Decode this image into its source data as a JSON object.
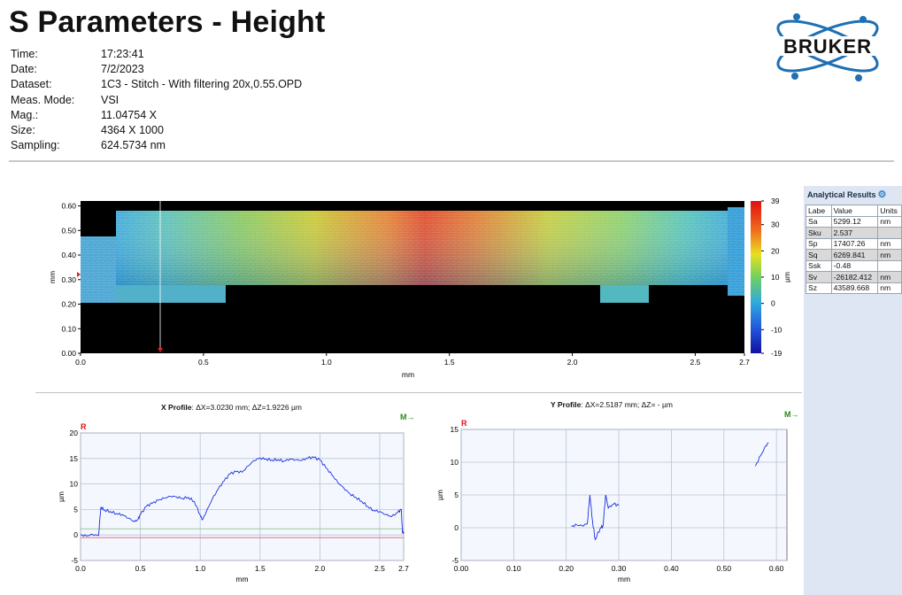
{
  "header": {
    "title": "S Parameters - Height",
    "meta": [
      {
        "key": "Time:",
        "value": "17:23:41"
      },
      {
        "key": "Date:",
        "value": "7/2/2023"
      },
      {
        "key": "Dataset:",
        "value": "1C3 - Stitch - With filtering 20x,0.55.OPD"
      },
      {
        "key": "Meas. Mode:",
        "value": "VSI"
      },
      {
        "key": "Mag.:",
        "value": "11.04754 X"
      },
      {
        "key": "Size:",
        "value": "4364 X 1000"
      },
      {
        "key": "Sampling:",
        "value": "624.5734 nm"
      }
    ],
    "logo_text": "BRUKER"
  },
  "results": {
    "title": "Analytical Results",
    "columns": [
      "Labe",
      "Value",
      "Units"
    ],
    "rows": [
      [
        "Sa",
        "5299.12",
        "nm"
      ],
      [
        "Sku",
        "2.537",
        ""
      ],
      [
        "Sp",
        "17407.26",
        "nm"
      ],
      [
        "Sq",
        "6269.841",
        "nm"
      ],
      [
        "Ssk",
        "-0.48",
        ""
      ],
      [
        "Sv",
        "-26182.412",
        "nm"
      ],
      [
        "Sz",
        "43589.668",
        "nm"
      ]
    ]
  },
  "colors": {
    "accent": "#1f6fb4",
    "profile_line": "#1c2fe0",
    "marker_r": "#e01010",
    "marker_m": "#2a8a18"
  },
  "chart_data": [
    {
      "type": "heatmap",
      "xlabel": "mm",
      "ylabel": "mm",
      "xlim": [
        0,
        2.7
      ],
      "ylim": [
        0,
        0.62
      ],
      "x_ticks": [
        "0.0",
        "0.5",
        "1.0",
        "1.5",
        "2.0",
        "2.5",
        "2.7"
      ],
      "y_ticks": [
        "0.00",
        "0.10",
        "0.20",
        "0.30",
        "0.40",
        "0.50",
        "0.60"
      ],
      "colorbar": {
        "unit": "µm",
        "ticks": [
          "39",
          "30",
          "20",
          "10",
          "0",
          "-10",
          "-19"
        ],
        "range": [
          -19,
          39
        ]
      }
    },
    {
      "type": "line",
      "title_label": "X Profile",
      "title_value": ": ΔX=3.0230 mm; ΔZ=1.9226 µm",
      "xlabel": "mm",
      "ylabel": "µm",
      "xlim": [
        0,
        2.7
      ],
      "ylim": [
        -5,
        20
      ],
      "x_ticks": [
        "0.0",
        "0.5",
        "1.0",
        "1.5",
        "2.0",
        "2.5",
        "2.7"
      ],
      "y_ticks": [
        "20",
        "15",
        "10",
        "5",
        "0",
        "-5"
      ],
      "marker_r": "R",
      "marker_m": "M→",
      "series": [
        {
          "values": [
            [
              0.0,
              0.0
            ],
            [
              0.05,
              -0.2
            ],
            [
              0.1,
              0.1
            ],
            [
              0.15,
              -0.1
            ],
            [
              0.17,
              5.5
            ],
            [
              0.2,
              4.9
            ],
            [
              0.25,
              4.6
            ],
            [
              0.3,
              4.2
            ],
            [
              0.35,
              4.0
            ],
            [
              0.4,
              3.3
            ],
            [
              0.45,
              2.6
            ],
            [
              0.48,
              3.0
            ],
            [
              0.5,
              4.0
            ],
            [
              0.55,
              5.6
            ],
            [
              0.6,
              6.2
            ],
            [
              0.65,
              6.8
            ],
            [
              0.7,
              7.2
            ],
            [
              0.75,
              7.6
            ],
            [
              0.8,
              7.5
            ],
            [
              0.85,
              7.2
            ],
            [
              0.9,
              7.4
            ],
            [
              0.95,
              6.6
            ],
            [
              1.0,
              3.9
            ],
            [
              1.02,
              3.0
            ],
            [
              1.05,
              4.5
            ],
            [
              1.1,
              7.0
            ],
            [
              1.15,
              9.0
            ],
            [
              1.2,
              10.6
            ],
            [
              1.25,
              12.0
            ],
            [
              1.3,
              12.4
            ],
            [
              1.35,
              12.3
            ],
            [
              1.4,
              13.5
            ],
            [
              1.45,
              14.6
            ],
            [
              1.5,
              15.1
            ],
            [
              1.55,
              14.9
            ],
            [
              1.6,
              14.7
            ],
            [
              1.65,
              14.8
            ],
            [
              1.7,
              14.5
            ],
            [
              1.75,
              14.9
            ],
            [
              1.8,
              14.7
            ],
            [
              1.85,
              14.6
            ],
            [
              1.9,
              15.1
            ],
            [
              1.95,
              15.2
            ],
            [
              2.0,
              14.7
            ],
            [
              2.05,
              13.2
            ],
            [
              2.1,
              11.8
            ],
            [
              2.15,
              10.3
            ],
            [
              2.2,
              9.2
            ],
            [
              2.25,
              8.1
            ],
            [
              2.3,
              7.4
            ],
            [
              2.35,
              6.6
            ],
            [
              2.4,
              5.6
            ],
            [
              2.45,
              4.8
            ],
            [
              2.5,
              4.6
            ],
            [
              2.55,
              4.0
            ],
            [
              2.6,
              3.6
            ],
            [
              2.65,
              4.4
            ],
            [
              2.68,
              5.0
            ],
            [
              2.69,
              0.6
            ],
            [
              2.7,
              0.3
            ]
          ]
        }
      ]
    },
    {
      "type": "line",
      "title_label": "Y Profile",
      "title_value": ": ΔX=2.5187 mm; ΔZ= -  µm",
      "xlabel": "mm",
      "ylabel": "µm",
      "xlim": [
        0,
        0.62
      ],
      "ylim": [
        -5,
        15
      ],
      "x_ticks": [
        "0.00",
        "0.10",
        "0.20",
        "0.30",
        "0.40",
        "0.50",
        "0.60"
      ],
      "y_ticks": [
        "15",
        "10",
        "5",
        "0",
        "-5"
      ],
      "marker_r": "R",
      "marker_m": "M→",
      "series": [
        {
          "values": [
            [
              0.21,
              0.2
            ],
            [
              0.22,
              0.4
            ],
            [
              0.23,
              0.3
            ],
            [
              0.24,
              0.6
            ],
            [
              0.245,
              5.0
            ],
            [
              0.25,
              1.0
            ],
            [
              0.255,
              -1.8
            ],
            [
              0.265,
              0.0
            ],
            [
              0.27,
              0.3
            ],
            [
              0.275,
              5.0
            ],
            [
              0.28,
              3.0
            ],
            [
              0.29,
              3.6
            ],
            [
              0.3,
              3.4
            ],
            [
              0.32,
              3.8
            ],
            [
              0.34,
              3.5
            ],
            [
              0.36,
              3.7
            ],
            [
              0.38,
              3.6
            ],
            [
              0.4,
              4.0
            ],
            [
              0.42,
              4.4
            ],
            [
              0.44,
              4.6
            ],
            [
              0.46,
              4.8
            ],
            [
              0.48,
              5.0
            ],
            [
              0.5,
              5.3
            ],
            [
              0.52,
              6.1
            ],
            [
              0.54,
              7.5
            ],
            [
              0.56,
              9.4
            ],
            [
              0.57,
              11.0
            ],
            [
              0.58,
              12.5
            ],
            [
              0.585,
              13.0
            ]
          ]
        }
      ]
    }
  ]
}
